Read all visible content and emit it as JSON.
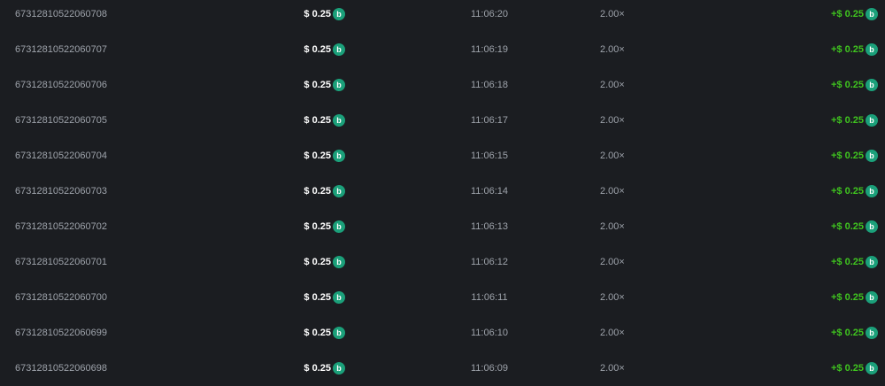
{
  "coin_icon": "bitcoin-b-coin-icon",
  "colors": {
    "background": "#1b1d21",
    "payout": "#3fc41f",
    "coin": "#1ba07a"
  },
  "rows": [
    {
      "id": "67312810522060708",
      "amount": "$ 0.25",
      "time": "11:06:20",
      "multiplier": "2.00×",
      "payout": "+$ 0.25"
    },
    {
      "id": "67312810522060707",
      "amount": "$ 0.25",
      "time": "11:06:19",
      "multiplier": "2.00×",
      "payout": "+$ 0.25"
    },
    {
      "id": "67312810522060706",
      "amount": "$ 0.25",
      "time": "11:06:18",
      "multiplier": "2.00×",
      "payout": "+$ 0.25"
    },
    {
      "id": "67312810522060705",
      "amount": "$ 0.25",
      "time": "11:06:17",
      "multiplier": "2.00×",
      "payout": "+$ 0.25"
    },
    {
      "id": "67312810522060704",
      "amount": "$ 0.25",
      "time": "11:06:15",
      "multiplier": "2.00×",
      "payout": "+$ 0.25"
    },
    {
      "id": "67312810522060703",
      "amount": "$ 0.25",
      "time": "11:06:14",
      "multiplier": "2.00×",
      "payout": "+$ 0.25"
    },
    {
      "id": "67312810522060702",
      "amount": "$ 0.25",
      "time": "11:06:13",
      "multiplier": "2.00×",
      "payout": "+$ 0.25"
    },
    {
      "id": "67312810522060701",
      "amount": "$ 0.25",
      "time": "11:06:12",
      "multiplier": "2.00×",
      "payout": "+$ 0.25"
    },
    {
      "id": "67312810522060700",
      "amount": "$ 0.25",
      "time": "11:06:11",
      "multiplier": "2.00×",
      "payout": "+$ 0.25"
    },
    {
      "id": "67312810522060699",
      "amount": "$ 0.25",
      "time": "11:06:10",
      "multiplier": "2.00×",
      "payout": "+$ 0.25"
    },
    {
      "id": "67312810522060698",
      "amount": "$ 0.25",
      "time": "11:06:09",
      "multiplier": "2.00×",
      "payout": "+$ 0.25"
    }
  ]
}
